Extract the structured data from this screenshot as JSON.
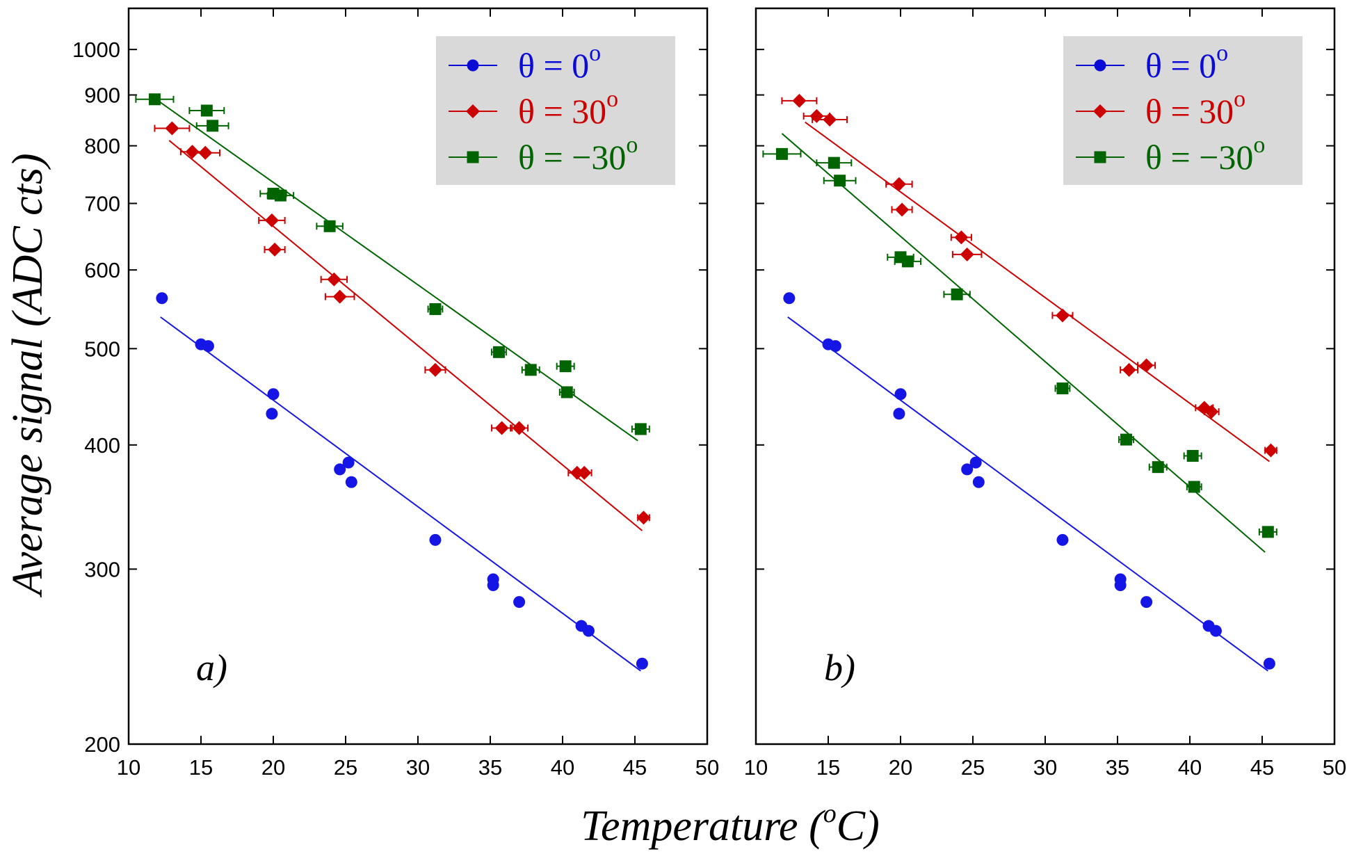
{
  "figure": {
    "ylabel": "Average signal (ADC cts)",
    "xlabel": "Temperature (oC)",
    "xlabel_main": "Temperature (",
    "xlabel_sup": "o",
    "xlabel_unit": "C)"
  },
  "legend": {
    "degree_sup": "o",
    "entries": [
      {
        "prefix": "θ = 0",
        "color": "#0b0bd6",
        "marker": "circle"
      },
      {
        "prefix": "θ = 30",
        "color": "#cc0000",
        "marker": "diamond"
      },
      {
        "prefix": "θ = −30",
        "color": "#006400",
        "marker": "square"
      }
    ]
  },
  "chart_data": [
    {
      "type": "scatter",
      "panel_label": "a)",
      "xlim": [
        10,
        50
      ],
      "ylim": [
        200,
        1100
      ],
      "y_scale": "log",
      "x_ticks": [
        10,
        15,
        20,
        25,
        30,
        35,
        40,
        45,
        50
      ],
      "y_ticks": [
        200,
        300,
        400,
        500,
        600,
        700,
        800,
        900,
        1000
      ],
      "grid": false,
      "legend_position": "top-right",
      "series": [
        {
          "name": "θ = 0o",
          "color": "#1515e6",
          "marker": "circle",
          "x": [
            12.3,
            15.0,
            15.5,
            19.9,
            20.0,
            24.6,
            25.2,
            25.4,
            31.2,
            35.2,
            35.2,
            37.0,
            41.3,
            41.8,
            45.5
          ],
          "y": [
            562,
            505,
            503,
            430,
            450,
            378,
            384,
            367,
            321,
            293,
            289,
            278,
            263,
            260,
            241
          ],
          "xerr": [
            0,
            0,
            0,
            0,
            0,
            0,
            0,
            0,
            0,
            0,
            0,
            0,
            0,
            0,
            0
          ],
          "fit": {
            "x": [
              12.2,
              45.4
            ],
            "y": [
              538,
              237
            ]
          }
        },
        {
          "name": "θ = 30o",
          "color": "#cc0000",
          "marker": "diamond",
          "x": [
            13.0,
            14.4,
            15.3,
            19.9,
            20.1,
            24.2,
            24.6,
            31.2,
            35.8,
            37.0,
            41.0,
            41.5,
            45.6
          ],
          "y": [
            833,
            789,
            787,
            673,
            629,
            587,
            564,
            476,
            416,
            416,
            375,
            375,
            338
          ],
          "xerr": [
            1.2,
            0.8,
            1.0,
            0.9,
            0.7,
            0.9,
            1.0,
            0.7,
            0.7,
            0.6,
            0.6,
            0.5,
            0.4
          ],
          "fit": {
            "x": [
              12.8,
              45.5
            ],
            "y": [
              810,
              328
            ]
          }
        },
        {
          "name": "θ = −30o",
          "color": "#006400",
          "marker": "square",
          "x": [
            11.8,
            15.4,
            15.8,
            20.0,
            20.5,
            23.9,
            31.2,
            35.6,
            37.8,
            40.2,
            40.3,
            45.4
          ],
          "y": [
            891,
            868,
            838,
            716,
            713,
            664,
            548,
            496,
            476,
            480,
            452,
            415
          ],
          "xerr": [
            1.3,
            1.2,
            1.1,
            0.9,
            0.9,
            0.9,
            0.5,
            0.5,
            0.6,
            0.6,
            0.5,
            0.6
          ],
          "fit": {
            "x": [
              11.8,
              45.2
            ],
            "y": [
              893,
              404
            ]
          }
        }
      ]
    },
    {
      "type": "scatter",
      "panel_label": "b)",
      "xlim": [
        10,
        50
      ],
      "ylim": [
        200,
        1100
      ],
      "y_scale": "log",
      "x_ticks": [
        10,
        15,
        20,
        25,
        30,
        35,
        40,
        45,
        50
      ],
      "y_ticks": [
        200,
        300,
        400,
        500,
        600,
        700,
        800,
        900,
        1000
      ],
      "grid": false,
      "legend_position": "top-right",
      "series": [
        {
          "name": "θ = 0o",
          "color": "#1515e6",
          "marker": "circle",
          "x": [
            12.3,
            15.0,
            15.5,
            19.9,
            20.0,
            24.6,
            25.2,
            25.4,
            31.2,
            35.2,
            35.2,
            37.0,
            41.3,
            41.8,
            45.5
          ],
          "y": [
            562,
            505,
            503,
            430,
            450,
            378,
            384,
            367,
            321,
            293,
            289,
            278,
            263,
            260,
            241
          ],
          "xerr": [
            0,
            0,
            0,
            0,
            0,
            0,
            0,
            0,
            0,
            0,
            0,
            0,
            0,
            0,
            0
          ],
          "fit": {
            "x": [
              12.2,
              45.4
            ],
            "y": [
              538,
              237
            ]
          }
        },
        {
          "name": "θ = 30o",
          "color": "#cc0000",
          "marker": "diamond",
          "x": [
            13.0,
            14.2,
            15.1,
            19.9,
            20.1,
            24.2,
            24.6,
            31.2,
            35.8,
            37.0,
            41.0,
            41.5,
            45.6
          ],
          "y": [
            888,
            857,
            850,
            732,
            690,
            647,
            622,
            540,
            476,
            481,
            436,
            432,
            395
          ],
          "xerr": [
            1.2,
            0.9,
            1.2,
            0.9,
            0.7,
            0.7,
            1.0,
            0.7,
            0.6,
            0.6,
            0.6,
            0.5,
            0.4
          ],
          "fit": {
            "x": [
              13.4,
              45.5
            ],
            "y": [
              845,
              385
            ]
          }
        },
        {
          "name": "θ = −30o",
          "color": "#006400",
          "marker": "square",
          "x": [
            11.8,
            15.4,
            15.8,
            20.0,
            20.5,
            23.9,
            31.2,
            35.6,
            37.8,
            40.2,
            40.3,
            45.4
          ],
          "y": [
            785,
            769,
            738,
            618,
            612,
            567,
            456,
            405,
            380,
            390,
            363,
            327
          ],
          "xerr": [
            1.3,
            1.2,
            1.1,
            0.9,
            0.9,
            0.9,
            0.5,
            0.5,
            0.6,
            0.6,
            0.5,
            0.6
          ],
          "fit": {
            "x": [
              11.8,
              45.2
            ],
            "y": [
              823,
              312
            ]
          }
        }
      ]
    }
  ]
}
